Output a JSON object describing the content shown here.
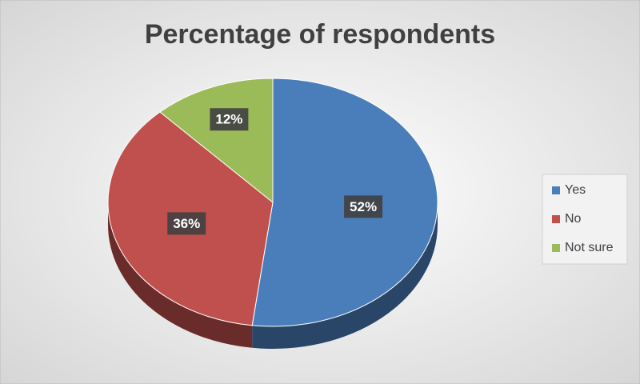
{
  "chart_data": {
    "type": "pie",
    "title": "Percentage of respondents",
    "categories": [
      "Yes",
      "No",
      "Not sure"
    ],
    "values": [
      52,
      36,
      12
    ],
    "value_labels": [
      "52%",
      "36%",
      "12%"
    ],
    "colors": [
      "#4a7ebb",
      "#c0504d",
      "#9bbb59"
    ],
    "legend": "right"
  }
}
